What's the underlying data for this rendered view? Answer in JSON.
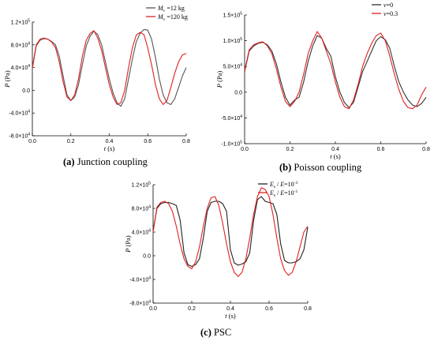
{
  "panels": [
    {
      "caption_letter": "(a)",
      "caption_text": " Junction coupling",
      "legend": [
        {
          "html": "<tspan font-style='italic'>M</tspan><tspan font-size='5.5px' dy='2'>v</tspan><tspan dy='-2'> =12 kg</tspan>",
          "color": "#555555"
        },
        {
          "html": "<tspan font-style='italic'>M</tspan><tspan font-size='5.5px' dy='2'>v</tspan><tspan dy='-2'> =120 kg</tspan>",
          "color": "#e02020"
        }
      ]
    },
    {
      "caption_letter": "(b)",
      "caption_text": " Poisson coupling",
      "legend": [
        {
          "html": "<tspan font-style='italic'>ν</tspan><tspan>=0</tspan>",
          "color": "#333333"
        },
        {
          "html": "<tspan font-style='italic'>ν</tspan><tspan>=0.3</tspan>",
          "color": "#e02020"
        }
      ]
    },
    {
      "caption_letter": "(c)",
      "caption_text": " PSC",
      "legend": [
        {
          "html": "<tspan font-style='italic'>E</tspan><tspan font-size='5.5px' dy='2'>s</tspan><tspan dy='-2'> / </tspan><tspan font-style='italic'>E</tspan><tspan>=10</tspan><tspan font-size='5.5px' dy='-3'>-3</tspan>",
          "color": "#222222"
        },
        {
          "html": "<tspan font-style='italic'>E</tspan><tspan font-size='5.5px' dy='2'>s</tspan><tspan dy='-2'> / </tspan><tspan font-style='italic'>E</tspan><tspan>=10</tspan><tspan font-size='5.5px' dy='-3'>-1</tspan>",
          "color": "#e02020"
        }
      ]
    }
  ],
  "chart_data": [
    {
      "type": "line",
      "xlabel": "t (s)",
      "ylabel": "P (Pa)",
      "xlim": [
        0,
        0.8
      ],
      "ylim": [
        -80000,
        120000
      ],
      "xticks": [
        "0.0",
        "0.2",
        "0.4",
        "0.6",
        "0.8"
      ],
      "yticks": [
        {
          "v": 120000,
          "m": "1.2",
          "e": "5"
        },
        {
          "v": 80000,
          "m": "8.0",
          "e": "4"
        },
        {
          "v": 40000,
          "m": "4.0",
          "e": "4"
        },
        {
          "v": 0,
          "m": "0.0",
          "e": ""
        },
        {
          "v": -40000,
          "m": "-4.0",
          "e": "4"
        },
        {
          "v": -80000,
          "m": "-8.0",
          "e": "4"
        }
      ],
      "series": [
        {
          "name": "Mv =12 kg",
          "color": "#555555",
          "x": [
            0,
            0.02,
            0.04,
            0.06,
            0.08,
            0.1,
            0.12,
            0.14,
            0.16,
            0.18,
            0.2,
            0.22,
            0.24,
            0.26,
            0.28,
            0.3,
            0.32,
            0.34,
            0.36,
            0.38,
            0.4,
            0.42,
            0.44,
            0.46,
            0.48,
            0.5,
            0.52,
            0.54,
            0.56,
            0.58,
            0.6,
            0.62,
            0.64,
            0.66,
            0.68,
            0.7,
            0.72,
            0.74,
            0.76,
            0.78,
            0.8
          ],
          "y": [
            38000,
            78000,
            88000,
            91000,
            90000,
            86000,
            80000,
            60000,
            25000,
            -8000,
            -18000,
            -12000,
            10000,
            45000,
            78000,
            95000,
            104000,
            98000,
            80000,
            50000,
            20000,
            -5000,
            -22000,
            -28000,
            -15000,
            20000,
            55000,
            85000,
            100000,
            107000,
            106000,
            90000,
            58000,
            20000,
            -8000,
            -22000,
            -25000,
            -15000,
            5000,
            25000,
            40000
          ]
        },
        {
          "name": "Mv =120 kg",
          "color": "#e02020",
          "x": [
            0,
            0.02,
            0.04,
            0.06,
            0.08,
            0.1,
            0.12,
            0.14,
            0.16,
            0.18,
            0.2,
            0.22,
            0.24,
            0.26,
            0.28,
            0.3,
            0.32,
            0.34,
            0.36,
            0.38,
            0.4,
            0.42,
            0.44,
            0.46,
            0.48,
            0.5,
            0.52,
            0.54,
            0.56,
            0.58,
            0.6,
            0.62,
            0.64,
            0.66,
            0.68,
            0.7,
            0.72,
            0.74,
            0.76,
            0.78,
            0.8
          ],
          "y": [
            40000,
            80000,
            90000,
            92000,
            90000,
            85000,
            75000,
            50000,
            15000,
            -12000,
            -18000,
            -8000,
            20000,
            60000,
            88000,
            100000,
            105000,
            92000,
            70000,
            40000,
            10000,
            -12000,
            -25000,
            -22000,
            0,
            40000,
            75000,
            97000,
            102000,
            98000,
            75000,
            45000,
            10000,
            -15000,
            -25000,
            -18000,
            5000,
            30000,
            50000,
            62000,
            65000
          ]
        }
      ]
    },
    {
      "type": "line",
      "xlabel": "t (s)",
      "ylabel": "P (Pa)",
      "xlim": [
        0,
        0.8
      ],
      "ylim": [
        -100000,
        150000
      ],
      "xticks": [
        "0.0",
        "0.2",
        "0.4",
        "0.6",
        "0.8"
      ],
      "yticks": [
        {
          "v": 150000,
          "m": "1.5",
          "e": "5"
        },
        {
          "v": 100000,
          "m": "1.0",
          "e": "5"
        },
        {
          "v": 50000,
          "m": "5.0",
          "e": "4"
        },
        {
          "v": 0,
          "m": "0.0",
          "e": ""
        },
        {
          "v": -50000,
          "m": "-5.0",
          "e": "4"
        },
        {
          "v": -100000,
          "m": "-1.0",
          "e": "5"
        }
      ],
      "series": [
        {
          "name": "ν=0",
          "color": "#333333",
          "x": [
            0,
            0.02,
            0.04,
            0.06,
            0.08,
            0.1,
            0.12,
            0.14,
            0.16,
            0.18,
            0.2,
            0.22,
            0.24,
            0.26,
            0.28,
            0.3,
            0.32,
            0.34,
            0.36,
            0.38,
            0.4,
            0.42,
            0.44,
            0.46,
            0.48,
            0.5,
            0.52,
            0.54,
            0.56,
            0.58,
            0.6,
            0.62,
            0.64,
            0.66,
            0.68,
            0.7,
            0.72,
            0.74,
            0.76,
            0.78,
            0.8
          ],
          "y": [
            40000,
            80000,
            90000,
            95000,
            97000,
            92000,
            80000,
            55000,
            20000,
            -10000,
            -25000,
            -15000,
            -10000,
            20000,
            60000,
            90000,
            110000,
            105000,
            85000,
            70000,
            30000,
            0,
            -20000,
            -30000,
            -20000,
            10000,
            40000,
            60000,
            80000,
            100000,
            108000,
            102000,
            85000,
            50000,
            20000,
            0,
            -15000,
            -25000,
            -28000,
            -22000,
            -10000
          ]
        },
        {
          "name": "ν=0.3",
          "color": "#e02020",
          "x": [
            0,
            0.02,
            0.04,
            0.06,
            0.08,
            0.1,
            0.12,
            0.14,
            0.16,
            0.18,
            0.2,
            0.22,
            0.24,
            0.26,
            0.28,
            0.3,
            0.32,
            0.34,
            0.36,
            0.38,
            0.4,
            0.42,
            0.44,
            0.46,
            0.48,
            0.5,
            0.52,
            0.54,
            0.56,
            0.58,
            0.6,
            0.62,
            0.64,
            0.66,
            0.68,
            0.7,
            0.72,
            0.74,
            0.76,
            0.78,
            0.8
          ],
          "y": [
            42000,
            82000,
            92000,
            96000,
            98000,
            90000,
            75000,
            45000,
            10000,
            -18000,
            -28000,
            -18000,
            0,
            35000,
            75000,
            100000,
            118000,
            105000,
            80000,
            55000,
            20000,
            -10000,
            -28000,
            -32000,
            -15000,
            15000,
            50000,
            75000,
            95000,
            110000,
            115000,
            100000,
            70000,
            35000,
            5000,
            -18000,
            -30000,
            -32000,
            -25000,
            -5000,
            10000
          ]
        }
      ]
    },
    {
      "type": "line",
      "xlabel": "t (s)",
      "ylabel": "P (Pa)",
      "xlim": [
        0,
        0.8
      ],
      "ylim": [
        -80000,
        120000
      ],
      "xticks": [
        "0.0",
        "0.2",
        "0.4",
        "0.6",
        "0.8"
      ],
      "yticks": [
        {
          "v": 120000,
          "m": "1.2",
          "e": "5"
        },
        {
          "v": 80000,
          "m": "8.0",
          "e": "4"
        },
        {
          "v": 40000,
          "m": "4.0",
          "e": "4"
        },
        {
          "v": 0,
          "m": "0.0",
          "e": ""
        },
        {
          "v": -40000,
          "m": "-4.0",
          "e": "4"
        },
        {
          "v": -80000,
          "m": "-8.0",
          "e": "4"
        }
      ],
      "series": [
        {
          "name": "Es / E=10-3",
          "color": "#222222",
          "x": [
            0,
            0.02,
            0.04,
            0.06,
            0.08,
            0.1,
            0.12,
            0.14,
            0.16,
            0.18,
            0.2,
            0.22,
            0.24,
            0.26,
            0.28,
            0.3,
            0.32,
            0.34,
            0.36,
            0.38,
            0.4,
            0.42,
            0.44,
            0.46,
            0.48,
            0.5,
            0.52,
            0.54,
            0.56,
            0.58,
            0.6,
            0.62,
            0.64,
            0.66,
            0.68,
            0.7,
            0.72,
            0.74,
            0.76,
            0.78,
            0.8
          ],
          "y": [
            42000,
            80000,
            88000,
            90000,
            90000,
            88000,
            85000,
            60000,
            5000,
            -15000,
            -18000,
            -15000,
            -5000,
            30000,
            75000,
            90000,
            92000,
            92000,
            88000,
            75000,
            10000,
            -12000,
            -16000,
            -14000,
            -10000,
            5000,
            60000,
            95000,
            100000,
            92000,
            90000,
            88000,
            70000,
            20000,
            -8000,
            -12000,
            -12000,
            -10000,
            -5000,
            10000,
            48000
          ]
        },
        {
          "name": "Es / E=10-1",
          "color": "#e02020",
          "x": [
            0,
            0.02,
            0.04,
            0.06,
            0.08,
            0.1,
            0.12,
            0.14,
            0.16,
            0.18,
            0.2,
            0.22,
            0.24,
            0.26,
            0.28,
            0.3,
            0.32,
            0.34,
            0.36,
            0.38,
            0.4,
            0.42,
            0.44,
            0.46,
            0.48,
            0.5,
            0.52,
            0.54,
            0.56,
            0.58,
            0.6,
            0.62,
            0.64,
            0.66,
            0.68,
            0.7,
            0.72,
            0.74,
            0.76,
            0.78,
            0.8
          ],
          "y": [
            40000,
            82000,
            90000,
            92000,
            88000,
            75000,
            50000,
            20000,
            -5000,
            -18000,
            -22000,
            -10000,
            15000,
            50000,
            80000,
            98000,
            100000,
            85000,
            55000,
            20000,
            -10000,
            -28000,
            -35000,
            -28000,
            -5000,
            30000,
            70000,
            100000,
            115000,
            112000,
            100000,
            70000,
            30000,
            -5000,
            -25000,
            -33000,
            -28000,
            -10000,
            15000,
            40000,
            50000
          ]
        }
      ]
    }
  ]
}
